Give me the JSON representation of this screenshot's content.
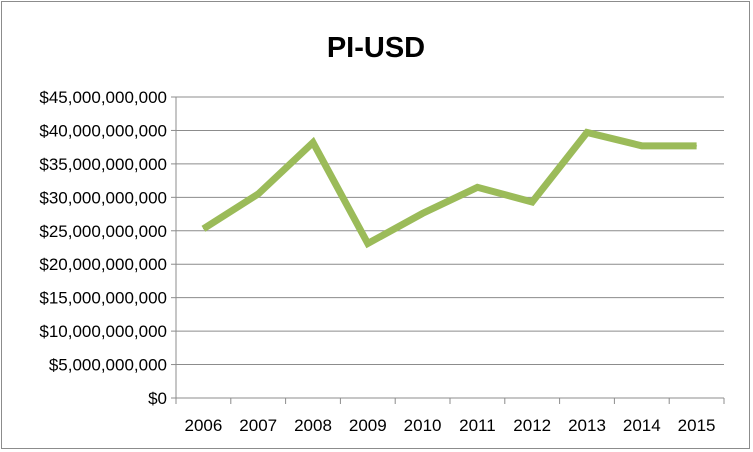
{
  "chart_data": {
    "type": "line",
    "title": "PI-USD",
    "xlabel": "",
    "ylabel": "",
    "categories": [
      "2006",
      "2007",
      "2008",
      "2009",
      "2010",
      "2011",
      "2012",
      "2013",
      "2014",
      "2015"
    ],
    "series": [
      {
        "values": [
          25300000000,
          30500000000,
          38200000000,
          23100000000,
          27600000000,
          31500000000,
          29300000000,
          39700000000,
          37700000000,
          37700000000
        ]
      }
    ],
    "ylim": [
      0,
      45000000000
    ],
    "yticks": [
      0,
      5000000000,
      10000000000,
      15000000000,
      20000000000,
      25000000000,
      30000000000,
      35000000000,
      40000000000,
      45000000000
    ],
    "ytick_labels": [
      "$0",
      "$5,000,000,000",
      "$10,000,000,000",
      "$15,000,000,000",
      "$20,000,000,000",
      "$25,000,000,000",
      "$30,000,000,000",
      "$35,000,000,000",
      "$40,000,000,000",
      "$45,000,000,000"
    ],
    "grid": true,
    "legend": "none",
    "colors": {
      "line": "#9bbb59",
      "grid": "#8c8c8c",
      "axis": "#8c8c8c"
    }
  }
}
